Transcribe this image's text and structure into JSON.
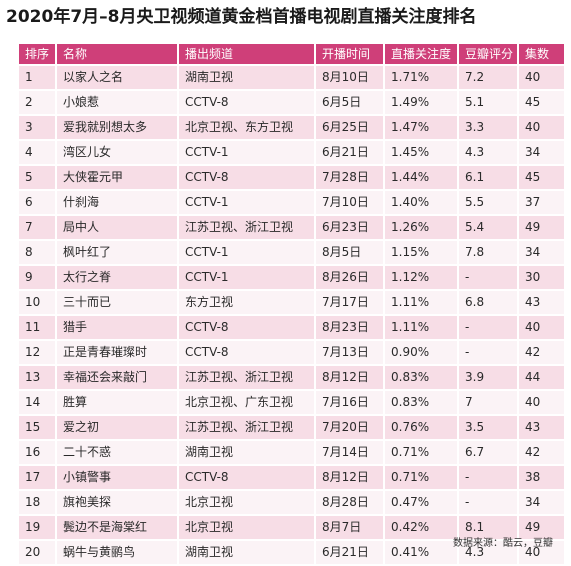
{
  "title": "2020年7月–8月央卫视频道黄金档首播电视剧直播关注度排名",
  "headers": [
    "排序",
    "名称",
    "播出频道",
    "开播时间",
    "直播关注度",
    "豆瓣评分",
    "集数"
  ],
  "rows": [
    [
      "1",
      "以家人之名",
      "湖南卫视",
      "8月10日",
      "1.71%",
      "7.2",
      "40"
    ],
    [
      "2",
      "小娘惹",
      "CCTV-8",
      "6月5日",
      "1.49%",
      "5.1",
      "45"
    ],
    [
      "3",
      "爱我就别想太多",
      "北京卫视、东方卫视",
      "6月25日",
      "1.47%",
      "3.3",
      "40"
    ],
    [
      "4",
      "湾区儿女",
      "CCTV-1",
      "6月21日",
      "1.45%",
      "4.3",
      "34"
    ],
    [
      "5",
      "大侠霍元甲",
      "CCTV-8",
      "7月28日",
      "1.44%",
      "6.1",
      "45"
    ],
    [
      "6",
      "什刹海",
      "CCTV-1",
      "7月10日",
      "1.40%",
      "5.5",
      "37"
    ],
    [
      "7",
      "局中人",
      "江苏卫视、浙江卫视",
      "6月23日",
      "1.26%",
      "5.4",
      "49"
    ],
    [
      "8",
      "枫叶红了",
      "CCTV-1",
      "8月5日",
      "1.15%",
      "7.8",
      "34"
    ],
    [
      "9",
      "太行之脊",
      "CCTV-1",
      "8月26日",
      "1.12%",
      "-",
      "30"
    ],
    [
      "10",
      "三十而已",
      "东方卫视",
      "7月17日",
      "1.11%",
      "6.8",
      "43"
    ],
    [
      "11",
      "猎手",
      "CCTV-8",
      "8月23日",
      "1.11%",
      "-",
      "40"
    ],
    [
      "12",
      "正是青春璀璨时",
      "CCTV-8",
      "7月13日",
      "0.90%",
      "-",
      "42"
    ],
    [
      "13",
      "幸福还会来敲门",
      "江苏卫视、浙江卫视",
      "8月12日",
      "0.83%",
      "3.9",
      "44"
    ],
    [
      "14",
      "胜算",
      "北京卫视、广东卫视",
      "7月16日",
      "0.83%",
      "7",
      "40"
    ],
    [
      "15",
      "爱之初",
      "江苏卫视、浙江卫视",
      "7月20日",
      "0.76%",
      "3.5",
      "43"
    ],
    [
      "16",
      "二十不惑",
      "湖南卫视",
      "7月14日",
      "0.71%",
      "6.7",
      "42"
    ],
    [
      "17",
      "小镇警事",
      "CCTV-8",
      "8月12日",
      "0.71%",
      "-",
      "38"
    ],
    [
      "18",
      "旗袍美探",
      "北京卫视",
      "8月28日",
      "0.47%",
      "-",
      "34"
    ],
    [
      "19",
      "鬓边不是海棠红",
      "北京卫视",
      "8月7日",
      "0.42%",
      "8.1",
      "49"
    ],
    [
      "20",
      "蜗牛与黄鹂鸟",
      "湖南卫视",
      "6月21日",
      "0.41%",
      "4.3",
      "40"
    ]
  ],
  "source": "数据来源：酷云，豆瓣",
  "colors": {
    "header_bg": "#cf3f79",
    "row_pink": "#f7dde6",
    "row_white": "#fbf3f6"
  }
}
